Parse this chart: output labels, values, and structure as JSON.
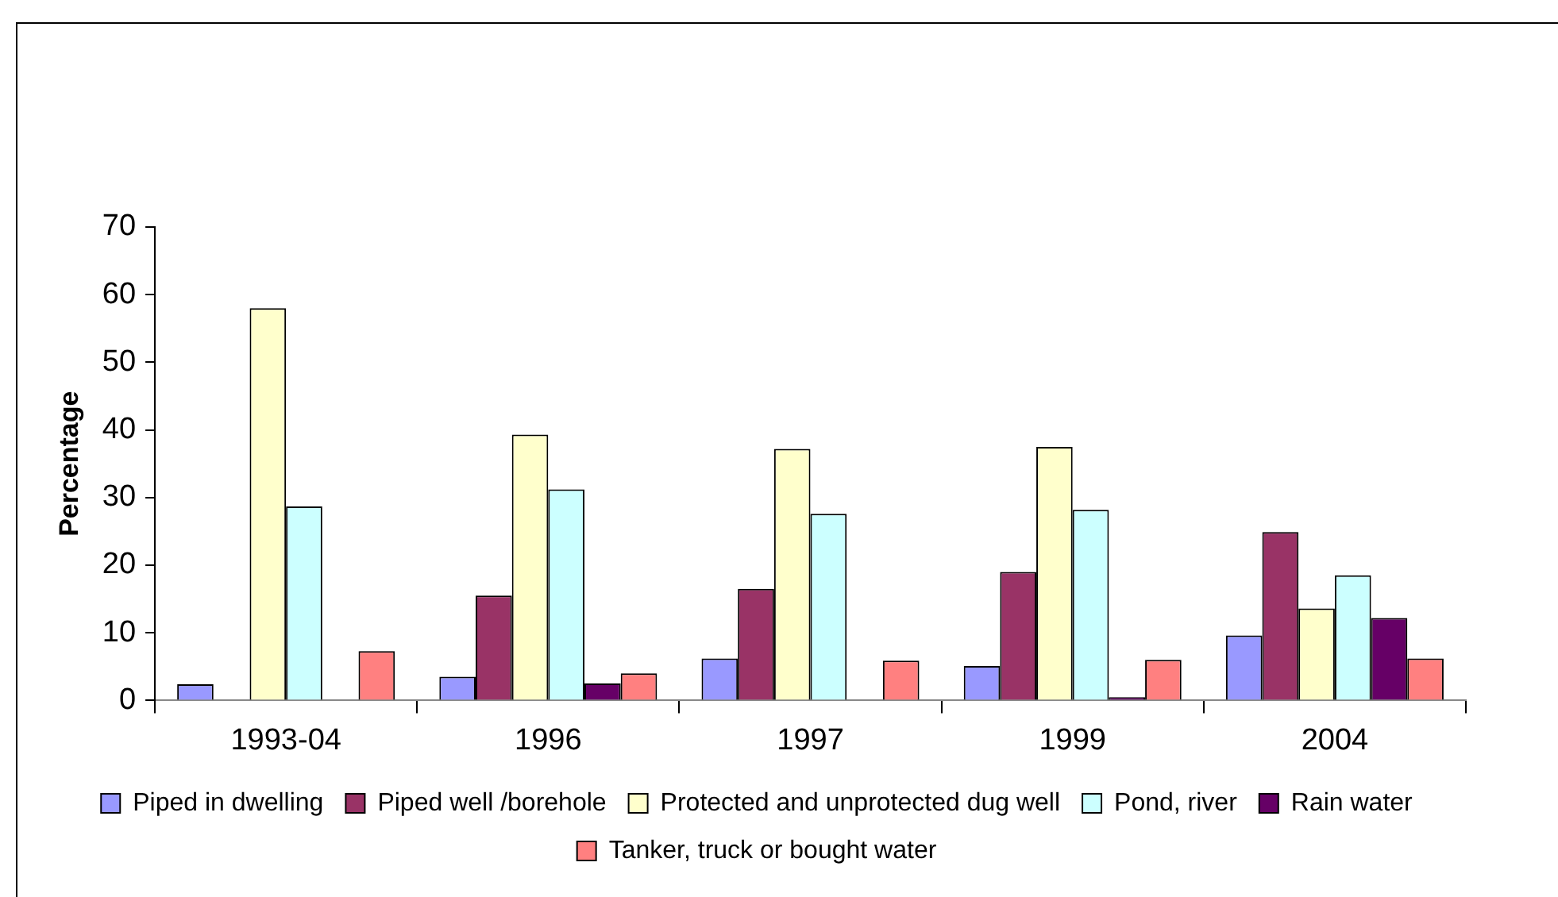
{
  "chart_data": {
    "type": "bar",
    "ylabel": "Percentage",
    "categories": [
      "1993-04",
      "1996",
      "1997",
      "1999",
      "2004"
    ],
    "series": [
      {
        "name": "Piped in dwelling",
        "color": "#9999ff",
        "values": [
          2.4,
          3.5,
          6.2,
          5.1,
          9.6
        ]
      },
      {
        "name": "Piped well /borehole",
        "color": "#993366",
        "values": [
          null,
          15.5,
          16.5,
          19.0,
          24.9
        ]
      },
      {
        "name": "Protected and unprotected dug well",
        "color": "#ffffcc",
        "values": [
          58,
          39.3,
          37.2,
          37.5,
          13.6
        ]
      },
      {
        "name": "Pond, river",
        "color": "#ccffff",
        "values": [
          28.7,
          31.2,
          27.6,
          28.2,
          18.5
        ]
      },
      {
        "name": "Rain water",
        "color": "#660066",
        "values": [
          null,
          2.5,
          null,
          0.5,
          12.2
        ]
      },
      {
        "name": "Tanker, truck or bought water",
        "color": "#ff8080",
        "values": [
          7.3,
          4.0,
          5.9,
          6.0,
          6.2
        ]
      }
    ],
    "ylim": [
      0,
      70
    ],
    "yticks": [
      0,
      10,
      20,
      30,
      40,
      50,
      60,
      70
    ],
    "grid": false,
    "legend": "bottom"
  }
}
